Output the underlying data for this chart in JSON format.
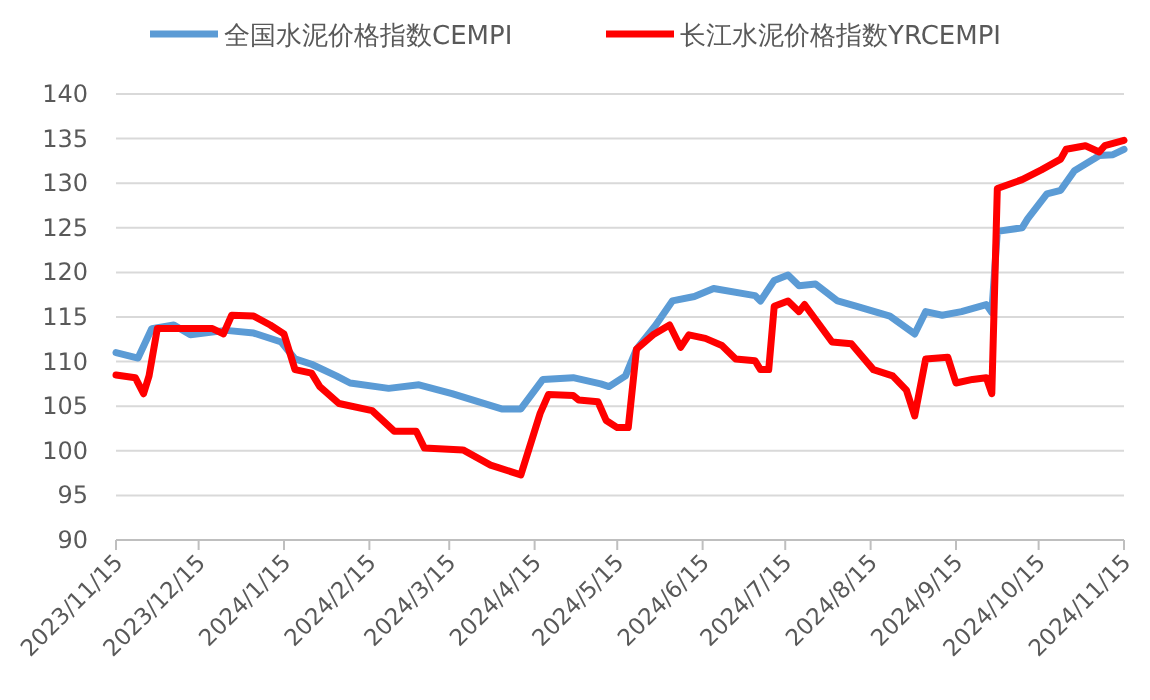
{
  "chart_data": {
    "type": "line",
    "legend": "top",
    "grid": "y",
    "line_style": "solid",
    "xlim": [
      "2023-11-15",
      "2024-11-15"
    ],
    "xticks": [
      {
        "value": "2023-11-15",
        "label": "2023/11/15"
      },
      {
        "value": "2023-12-15",
        "label": "2023/12/15"
      },
      {
        "value": "2024-01-15",
        "label": "2024/1/15"
      },
      {
        "value": "2024-02-15",
        "label": "2024/2/15"
      },
      {
        "value": "2024-03-15",
        "label": "2024/3/15"
      },
      {
        "value": "2024-04-15",
        "label": "2024/4/15"
      },
      {
        "value": "2024-05-15",
        "label": "2024/5/15"
      },
      {
        "value": "2024-06-15",
        "label": "2024/6/15"
      },
      {
        "value": "2024-07-15",
        "label": "2024/7/15"
      },
      {
        "value": "2024-08-15",
        "label": "2024/8/15"
      },
      {
        "value": "2024-09-15",
        "label": "2024/9/15"
      },
      {
        "value": "2024-10-15",
        "label": "2024/10/15"
      },
      {
        "value": "2024-11-15",
        "label": "2024/11/15"
      }
    ],
    "ylim": [
      90,
      140
    ],
    "yticks": [
      90,
      95,
      100,
      105,
      110,
      115,
      120,
      125,
      130,
      135,
      140
    ],
    "series": [
      {
        "name": "全国水泥价格指数CEMPI",
        "color": "#5b9bd5",
        "x": [
          "2023-11-15",
          "2023-11-23",
          "2023-11-28",
          "2023-12-06",
          "2023-12-12",
          "2023-12-25",
          "2024-01-04",
          "2024-01-14",
          "2024-01-19",
          "2024-01-25",
          "2024-02-03",
          "2024-02-08",
          "2024-02-22",
          "2024-03-04",
          "2024-03-16",
          "2024-04-03",
          "2024-04-10",
          "2024-04-18",
          "2024-04-29",
          "2024-05-09",
          "2024-05-12",
          "2024-05-18",
          "2024-05-22",
          "2024-05-29",
          "2024-06-04",
          "2024-06-12",
          "2024-06-19",
          "2024-07-04",
          "2024-07-06",
          "2024-07-11",
          "2024-07-16",
          "2024-07-20",
          "2024-07-26",
          "2024-08-03",
          "2024-08-10",
          "2024-08-22",
          "2024-08-31",
          "2024-09-04",
          "2024-09-10",
          "2024-09-17",
          "2024-09-26",
          "2024-09-28",
          "2024-09-30",
          "2024-10-09",
          "2024-10-11",
          "2024-10-18",
          "2024-10-23",
          "2024-10-28",
          "2024-11-04",
          "2024-11-06",
          "2024-11-11",
          "2024-11-15"
        ],
        "values": [
          111.0,
          110.4,
          113.7,
          114.1,
          113.0,
          113.5,
          113.2,
          112.2,
          110.3,
          109.7,
          108.4,
          107.6,
          107.0,
          107.4,
          106.4,
          104.7,
          104.7,
          108.0,
          108.2,
          107.5,
          107.2,
          108.4,
          111.4,
          114.1,
          116.8,
          117.3,
          118.2,
          117.4,
          116.8,
          119.1,
          119.7,
          118.5,
          118.7,
          116.8,
          116.2,
          115.1,
          113.1,
          115.6,
          115.2,
          115.6,
          116.4,
          115.5,
          124.6,
          125.0,
          126.0,
          128.8,
          129.2,
          131.4,
          132.7,
          133.1,
          133.2,
          133.8
        ]
      },
      {
        "name": "长江水泥价格指数YRCEMPI",
        "color": "#ff0000",
        "x": [
          "2023-11-15",
          "2023-11-22",
          "2023-11-25",
          "2023-11-27",
          "2023-11-30",
          "2023-12-20",
          "2023-12-24",
          "2023-12-27",
          "2024-01-04",
          "2024-01-10",
          "2024-01-15",
          "2024-01-19",
          "2024-01-25",
          "2024-01-28",
          "2024-02-04",
          "2024-02-16",
          "2024-02-24",
          "2024-03-03",
          "2024-03-06",
          "2024-03-20",
          "2024-03-30",
          "2024-04-10",
          "2024-04-17",
          "2024-04-20",
          "2024-04-29",
          "2024-05-01",
          "2024-05-08",
          "2024-05-11",
          "2024-05-15",
          "2024-05-19",
          "2024-05-22",
          "2024-05-28",
          "2024-06-03",
          "2024-06-07",
          "2024-06-10",
          "2024-06-16",
          "2024-06-22",
          "2024-06-27",
          "2024-07-04",
          "2024-07-06",
          "2024-07-09",
          "2024-07-11",
          "2024-07-16",
          "2024-07-20",
          "2024-07-22",
          "2024-08-01",
          "2024-08-08",
          "2024-08-16",
          "2024-08-23",
          "2024-08-28",
          "2024-08-31",
          "2024-09-04",
          "2024-09-12",
          "2024-09-15",
          "2024-09-21",
          "2024-09-26",
          "2024-09-28",
          "2024-09-30",
          "2024-10-09",
          "2024-10-16",
          "2024-10-23",
          "2024-10-25",
          "2024-11-01",
          "2024-11-06",
          "2024-11-08",
          "2024-11-15"
        ],
        "values": [
          108.5,
          108.2,
          106.4,
          108.4,
          113.7,
          113.7,
          113.1,
          115.2,
          115.1,
          114.1,
          113.1,
          109.1,
          108.7,
          107.2,
          105.3,
          104.5,
          102.2,
          102.2,
          100.3,
          100.1,
          98.4,
          97.3,
          104.2,
          106.3,
          106.2,
          105.7,
          105.5,
          103.4,
          102.6,
          102.6,
          111.4,
          113.0,
          114.1,
          111.6,
          113.0,
          112.6,
          111.8,
          110.3,
          110.1,
          109.1,
          109.1,
          116.2,
          116.8,
          115.6,
          116.4,
          112.2,
          112.0,
          109.1,
          108.4,
          106.8,
          103.9,
          110.3,
          110.5,
          107.6,
          108.0,
          108.2,
          106.4,
          129.4,
          130.4,
          131.5,
          132.7,
          133.8,
          134.2,
          133.5,
          134.2,
          134.8
        ]
      }
    ]
  }
}
